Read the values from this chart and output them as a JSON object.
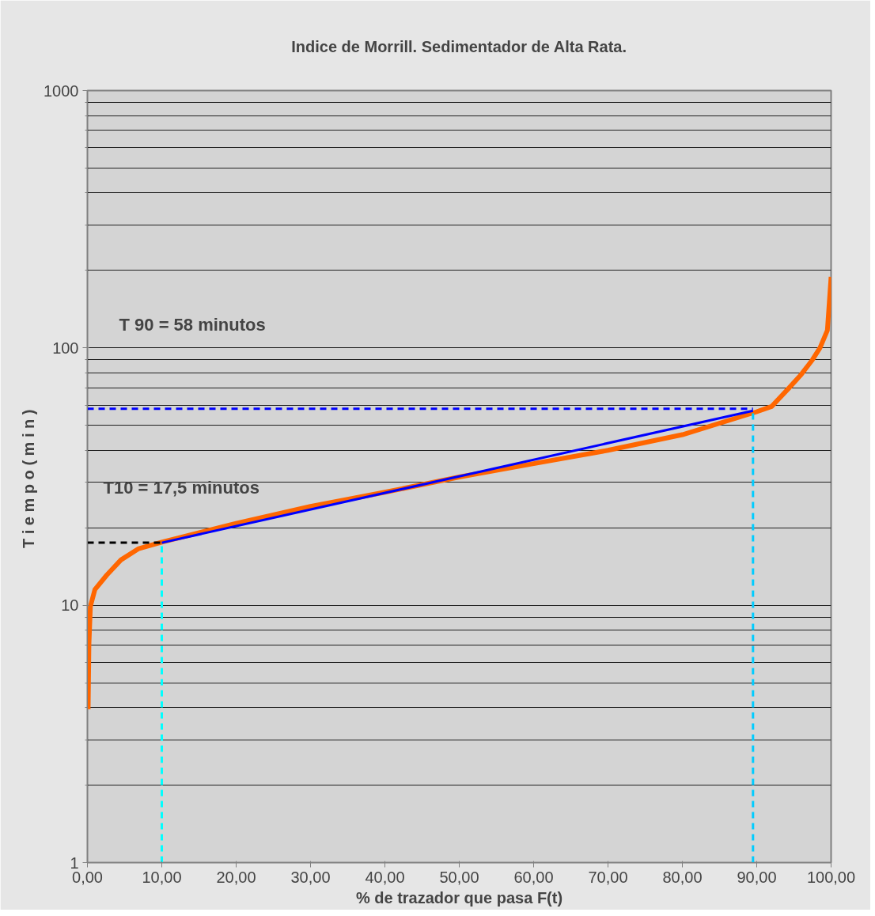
{
  "chart_data": {
    "type": "line",
    "title": "Indice de Morrill. Sedimentador de Alta Rata.",
    "xlabel": "% de trazador que pasa F(t)",
    "ylabel": "T i e m p o  ( m i n )",
    "log": "y",
    "grid": "y",
    "line_style": "solid",
    "marker": "none",
    "xlim": [
      0,
      100
    ],
    "ylim": [
      1,
      1000
    ],
    "xticks": [
      {
        "value": 0,
        "label": "0,00"
      },
      {
        "value": 10,
        "label": "10,00"
      },
      {
        "value": 20,
        "label": "20,00"
      },
      {
        "value": 30,
        "label": "30,00"
      },
      {
        "value": 40,
        "label": "40,00"
      },
      {
        "value": 50,
        "label": "50,00"
      },
      {
        "value": 60,
        "label": "60,00"
      },
      {
        "value": 70,
        "label": "70,00"
      },
      {
        "value": 80,
        "label": "80,00"
      },
      {
        "value": 90,
        "label": "90,00"
      },
      {
        "value": 100,
        "label": "100,00"
      }
    ],
    "yticks": [
      1,
      {
        "value": 2,
        "label": null
      },
      {
        "value": 3,
        "label": null
      },
      {
        "value": 4,
        "label": null
      },
      {
        "value": 5,
        "label": null
      },
      {
        "value": 6,
        "label": null
      },
      {
        "value": 7,
        "label": null
      },
      {
        "value": 8,
        "label": null
      },
      {
        "value": 9,
        "label": null
      },
      10,
      {
        "value": 20,
        "label": null
      },
      {
        "value": 30,
        "label": null
      },
      {
        "value": 40,
        "label": null
      },
      {
        "value": 50,
        "label": null
      },
      {
        "value": 60,
        "label": null
      },
      {
        "value": 70,
        "label": null
      },
      {
        "value": 80,
        "label": null
      },
      {
        "value": 90,
        "label": null
      },
      100,
      {
        "value": 200,
        "label": null
      },
      {
        "value": 300,
        "label": null
      },
      {
        "value": 400,
        "label": null
      },
      {
        "value": 500,
        "label": null
      },
      {
        "value": 600,
        "label": null
      },
      {
        "value": 700,
        "label": null
      },
      {
        "value": 800,
        "label": null
      },
      {
        "value": 900,
        "label": null
      },
      1000
    ],
    "series": [
      {
        "color": "#ff6600",
        "x": [
          0.1,
          0.2,
          0.4,
          1,
          2.6,
          4.5,
          6.9,
          10,
          20,
          30,
          40,
          50,
          60,
          70,
          80,
          90,
          92,
          94.3,
          96,
          97.5,
          98.5,
          99.5,
          100
        ],
        "values": [
          3.95,
          7,
          9.9,
          11.5,
          13.1,
          15,
          16.6,
          17.6,
          20.8,
          24.2,
          27.5,
          31.5,
          35.5,
          40,
          46,
          56.5,
          59.2,
          69.7,
          79,
          90,
          100,
          117,
          189
        ]
      },
      {
        "color": "#0000ff",
        "x": [
          10,
          89.5
        ],
        "values": [
          17.5,
          57
        ]
      },
      {
        "color": "#0000ff",
        "line_style": "dashed",
        "x": [
          0,
          89.5
        ],
        "values": [
          58,
          58
        ]
      },
      {
        "color": "#000000",
        "line_style": "dashed",
        "x": [
          0,
          10
        ],
        "values": [
          17.5,
          17.5
        ]
      },
      {
        "color": "#00ffff",
        "line_style": "dashed",
        "x": [
          10,
          10
        ],
        "values": [
          1,
          17.5
        ]
      },
      {
        "color": "#00ccff",
        "line_style": "dashed",
        "x": [
          89.5,
          89.5
        ],
        "values": [
          1,
          57
        ]
      }
    ],
    "annotations": [
      "T 90 = 58 minutos",
      "T10 = 17,5 minutos"
    ]
  }
}
